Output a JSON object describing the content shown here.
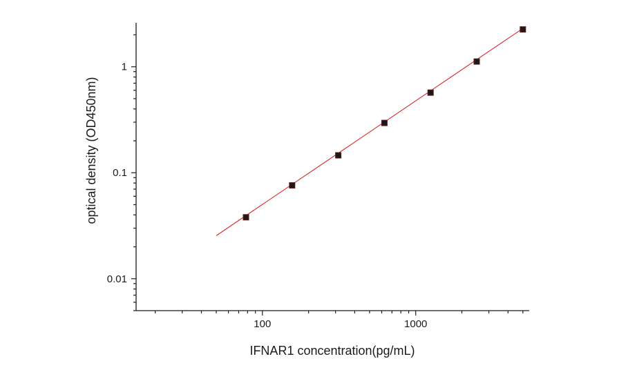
{
  "chart_data": {
    "type": "scatter",
    "title": "",
    "xlabel": "IFNAR1  concentration(pg/mL)",
    "ylabel": "optical density (OD450nm)",
    "x_scale": "log",
    "y_scale": "log",
    "xlim": [
      15,
      5500
    ],
    "ylim": [
      0.005,
      2.6
    ],
    "x_ticks": [
      {
        "value": 100,
        "label": "100"
      },
      {
        "value": 1000,
        "label": "1000"
      }
    ],
    "y_ticks": [
      {
        "value": 0.01,
        "label": "0.01"
      },
      {
        "value": 0.1,
        "label": "0.1"
      },
      {
        "value": 1,
        "label": "1"
      }
    ],
    "grid": false,
    "legend": "none",
    "series": [
      {
        "kind": "points",
        "marker": "square",
        "color": "#1a1a1a",
        "x": [
          78.125,
          156.25,
          312.5,
          625,
          1250,
          2500,
          5000
        ],
        "y": [
          0.038,
          0.076,
          0.146,
          0.295,
          0.57,
          1.12,
          2.25
        ]
      },
      {
        "kind": "fit-line",
        "color": "#d62728",
        "x": [
          50,
          5000
        ],
        "y": [
          0.0255,
          2.3
        ]
      }
    ]
  }
}
